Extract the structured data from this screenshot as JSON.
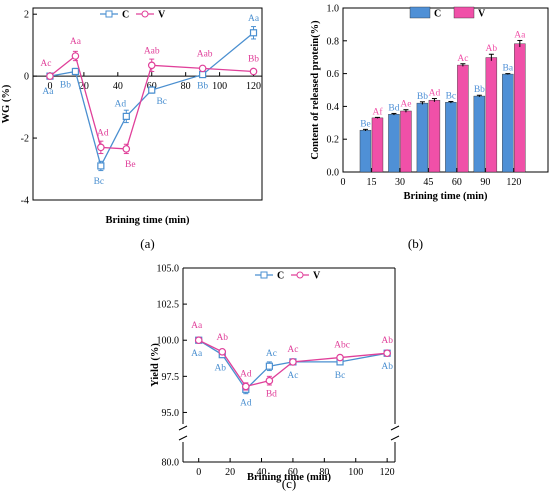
{
  "chart_data": [
    {
      "type": "line",
      "panel_label": "(a)",
      "xlabel": "Brining time (min)",
      "ylabel": "WG (%)",
      "xlim": [
        -10,
        125
      ],
      "ylim": [
        -4,
        2.2
      ],
      "xticks": [
        0,
        20,
        40,
        60,
        80,
        100,
        120
      ],
      "yticks": [
        -4,
        -2,
        0,
        2
      ],
      "x": [
        0,
        15,
        30,
        45,
        60,
        90,
        120
      ],
      "series": [
        {
          "name": "C",
          "color": "#4a8fd0",
          "marker": "square",
          "values": [
            0,
            0.15,
            -2.9,
            -1.3,
            -0.45,
            0.05,
            1.4
          ],
          "errors": [
            0,
            0.1,
            0.15,
            0.2,
            0.1,
            0.05,
            0.2
          ],
          "labels": [
            "Aa",
            "Bb",
            "Bc",
            "Ad",
            "Bc",
            "Bb",
            "Aa"
          ]
        },
        {
          "name": "V",
          "color": "#e0409a",
          "marker": "circle",
          "values": [
            0,
            0.65,
            -2.3,
            -2.35,
            0.35,
            0.25,
            0.15
          ],
          "errors": [
            0,
            0.15,
            0.2,
            0.15,
            0.2,
            0.05,
            0.05
          ],
          "labels": [
            "Ac",
            "Aa",
            "Ad",
            "Be",
            "Aab",
            "Aab",
            "Bb"
          ]
        }
      ],
      "legend": "top-center"
    },
    {
      "type": "bar",
      "panel_label": "(b)",
      "xlabel": "Brining time (min)",
      "ylabel": "Content of released protein(%)",
      "xlim": [
        0,
        125
      ],
      "ylim": [
        0,
        1.0
      ],
      "xticks": [
        0,
        15,
        30,
        45,
        60,
        90,
        120
      ],
      "yticks": [
        0.0,
        0.2,
        0.4,
        0.6,
        0.8,
        1.0
      ],
      "categories": [
        "15",
        "30",
        "45",
        "60",
        "90",
        "120"
      ],
      "series": [
        {
          "name": "C",
          "color": "#4f90d6",
          "values": [
            0.255,
            0.352,
            0.42,
            0.425,
            0.463,
            0.597
          ],
          "errors": [
            0.005,
            0.005,
            0.008,
            0.005,
            0.005,
            0.003
          ],
          "labels": [
            "Be",
            "Bd",
            "Bb",
            "Bc",
            "Bb",
            "Ba"
          ]
        },
        {
          "name": "V",
          "color": "#f050a8",
          "values": [
            0.33,
            0.372,
            0.438,
            0.652,
            0.698,
            0.782
          ],
          "errors": [
            0.003,
            0.008,
            0.01,
            0.008,
            0.02,
            0.02
          ],
          "labels": [
            "Af",
            "Ae",
            "Ad",
            "Ac",
            "Ab",
            "Aa"
          ]
        }
      ],
      "legend": "top-left"
    },
    {
      "type": "line",
      "panel_label": "(c)",
      "xlabel": "Brining time (min)",
      "ylabel": "Yield (%)",
      "xlim": [
        -10,
        125
      ],
      "ylim": [
        80,
        105
      ],
      "y_axis_break": [
        81,
        94.2
      ],
      "xticks": [
        0,
        20,
        40,
        60,
        80,
        100,
        120
      ],
      "yticks": [
        80.0,
        95.0,
        97.5,
        100.0,
        102.5,
        105.0
      ],
      "x": [
        0,
        15,
        30,
        45,
        60,
        90,
        120
      ],
      "series": [
        {
          "name": "C",
          "color": "#4a8fd0",
          "marker": "square",
          "values": [
            100.0,
            99.0,
            96.6,
            98.2,
            98.5,
            98.5,
            99.1
          ],
          "errors": [
            0,
            0.2,
            0.3,
            0.3,
            0.2,
            0.2,
            0.2
          ],
          "labels": [
            "Aa",
            "Ab",
            "Ad",
            "Ac",
            "Ac",
            "Bc",
            "Ab"
          ]
        },
        {
          "name": "V",
          "color": "#e0409a",
          "marker": "circle",
          "values": [
            100.0,
            99.2,
            96.8,
            97.2,
            98.5,
            98.8,
            99.1
          ],
          "errors": [
            0,
            0.15,
            0.25,
            0.3,
            0.15,
            0.1,
            0.15
          ],
          "labels": [
            "Aa",
            "Ab",
            "Ad",
            "Bd",
            "Ac",
            "Abc",
            "Ab"
          ]
        }
      ],
      "legend": "top-center"
    }
  ]
}
